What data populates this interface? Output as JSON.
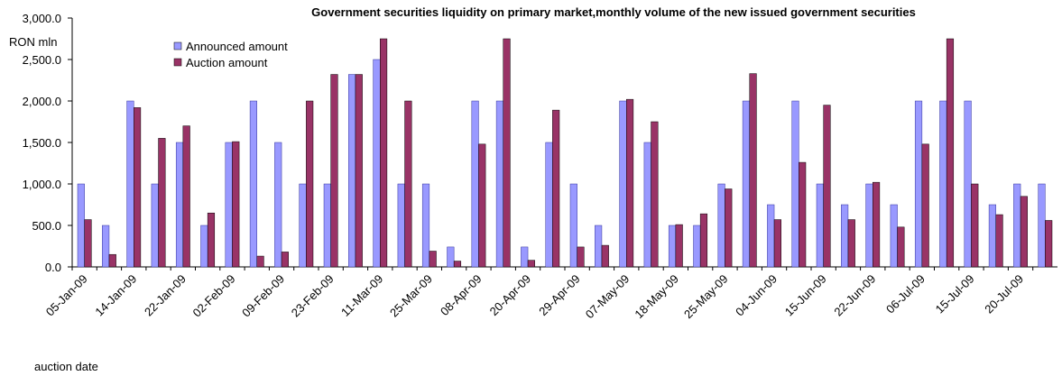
{
  "chart_data": {
    "type": "bar",
    "title": "Government securities liquidity on primary market,monthly volume of the new issued government securities",
    "y_label": "RON mln",
    "x_label": "auction date",
    "categories": [
      "05-Jan-09",
      null,
      "14-Jan-09",
      null,
      "22-Jan-09",
      null,
      "02-Feb-09",
      null,
      "09-Feb-09",
      null,
      "23-Feb-09",
      null,
      "11-Mar-09",
      null,
      "25-Mar-09",
      null,
      "08-Apr-09",
      null,
      "20-Apr-09",
      null,
      "29-Apr-09",
      null,
      "07-May-09",
      null,
      "18-May-09",
      null,
      "25-May-09",
      null,
      "04-Jun-09",
      null,
      "15-Jun-09",
      null,
      "22-Jun-09",
      null,
      "06-Jul-09",
      null,
      "15-Jul-09",
      null,
      "20-Jul-09",
      null
    ],
    "series": [
      {
        "name": "Announced amount",
        "color": "#9999ff",
        "values": [
          1000,
          500,
          2000,
          1000,
          1500,
          500,
          1500,
          2000,
          1500,
          1000,
          1000,
          2320,
          2500,
          1000,
          1000,
          240,
          2000,
          2000,
          240,
          1500,
          1000,
          500,
          2000,
          1500,
          500,
          500,
          1000,
          2000,
          750,
          2000,
          1000,
          750,
          1000,
          750,
          2000,
          2000,
          2000,
          750,
          1000,
          1000
        ]
      },
      {
        "name": "Auction amount",
        "color": "#993366",
        "values": [
          570,
          150,
          1920,
          1550,
          1700,
          650,
          1510,
          130,
          180,
          2000,
          2320,
          2320,
          2750,
          2000,
          190,
          70,
          1480,
          2750,
          80,
          1890,
          240,
          260,
          2020,
          1750,
          510,
          640,
          940,
          2330,
          570,
          1260,
          1950,
          570,
          1020,
          480,
          1480,
          2750,
          1000,
          630,
          850,
          560
        ]
      }
    ],
    "ylim": [
      0,
      3000
    ],
    "yticks": [
      {
        "value": 0,
        "label": "0.0"
      },
      {
        "value": 500,
        "label": "500.0"
      },
      {
        "value": 1000,
        "label": "1,000.0"
      },
      {
        "value": 1500,
        "label": "1,500.0"
      },
      {
        "value": 2000,
        "label": "2,000.0"
      },
      {
        "value": 2500,
        "label": "2,500.0"
      },
      {
        "value": 3000,
        "label": "3,000.0"
      }
    ],
    "legend": "upper left"
  }
}
